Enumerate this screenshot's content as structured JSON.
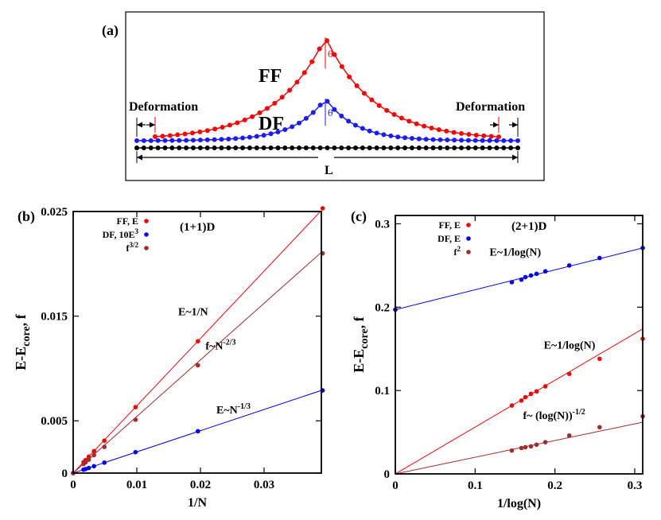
{
  "panels": {
    "a": {
      "tag": "(a)",
      "ff_label": "FF",
      "df_label": "DF",
      "deformation_left": "Deformation",
      "deformation_right": "Deformation",
      "length_label": "L",
      "angle_label": "θ",
      "colors": {
        "ff": "#ff0000",
        "df": "#1a1aff",
        "base": "#000000"
      }
    },
    "b": {
      "tag": "(b)",
      "dimension": "(1+1)D"
    },
    "c": {
      "tag": "(c)",
      "dimension": "(2+1)D"
    }
  },
  "chart_data": [
    {
      "type": "scatter",
      "panel": "b",
      "xlabel": "1/N",
      "ylabel": {
        "main": "E-E",
        "sub": "core",
        "tail": ", f"
      },
      "xlim": [
        0,
        0.039
      ],
      "ylim": [
        0,
        0.025
      ],
      "xticks": [
        {
          "v": 0,
          "t": "0"
        },
        {
          "v": 0.01,
          "t": "0.01"
        },
        {
          "v": 0.02,
          "t": "0.02"
        },
        {
          "v": 0.03,
          "t": "0.03"
        }
      ],
      "yticks": [
        {
          "v": 0,
          "t": "0"
        },
        {
          "v": 0.005,
          "t": "0.005"
        },
        {
          "v": 0.015,
          "t": "0.015"
        },
        {
          "v": 0.025,
          "t": "0.025"
        }
      ],
      "legend": [
        {
          "label": "FF, E",
          "color": "#ff0000"
        },
        {
          "label": "DF, 10E",
          "sup": "3",
          "color": "#0000ff"
        },
        {
          "label": "f",
          "sup": "3/2",
          "color": "#a52a2a"
        }
      ],
      "series": [
        {
          "name": "FF, E",
          "color": "#ff0000",
          "x": [
            0.0392,
            0.0196,
            0.0098,
            0.0049,
            0.00327,
            0.00245,
            0.00196,
            0.00163,
            0.0
          ],
          "y": [
            0.0253,
            0.0126,
            0.0063,
            0.0031,
            0.0021,
            0.00157,
            0.00125,
            0.00105,
            0.0
          ],
          "fit": [
            [
              0,
              0
            ],
            [
              0.039,
              0.0251
            ]
          ]
        },
        {
          "name": "DF, 10E3",
          "color": "#0000ff",
          "x": [
            0.0392,
            0.0196,
            0.0098,
            0.0049,
            0.00327,
            0.00245,
            0.00196,
            0.00163,
            0.0
          ],
          "y": [
            0.0079,
            0.004,
            0.002,
            0.001,
            0.00066,
            0.00049,
            0.00039,
            0.00033,
            0.0
          ],
          "fit": [
            [
              0,
              0
            ],
            [
              0.039,
              0.0079
            ]
          ]
        },
        {
          "name": "f3/2",
          "color": "#a52a2a",
          "x": [
            0.0392,
            0.0196,
            0.0098,
            0.0049,
            0.00327,
            0.00245,
            0.00196,
            0.00163,
            0.0
          ],
          "y": [
            0.021,
            0.0103,
            0.0051,
            0.0025,
            0.00171,
            0.00128,
            0.00103,
            0.00086,
            0.0
          ],
          "fit": [
            [
              0,
              0
            ],
            [
              0.039,
              0.0211
            ]
          ]
        }
      ],
      "annotations": [
        {
          "text": "E~1/N",
          "x": 0.0165,
          "y": 0.0151
        },
        {
          "text": "f~N",
          "sup": "-2/3",
          "x": 0.0208,
          "y": 0.0118
        },
        {
          "text": "E~N",
          "sup": "-1/3",
          "x": 0.0225,
          "y": 0.0057
        }
      ]
    },
    {
      "type": "scatter",
      "panel": "c",
      "xlabel": "1/log(N)",
      "ylabel": {
        "main": "E-E",
        "sub": "core",
        "tail": ", f"
      },
      "xlim": [
        0,
        0.31
      ],
      "ylim": [
        0,
        0.31
      ],
      "xticks": [
        {
          "v": 0,
          "t": "0"
        },
        {
          "v": 0.1,
          "t": "0.1"
        },
        {
          "v": 0.2,
          "t": "0.2"
        },
        {
          "v": 0.3,
          "t": "0.3"
        }
      ],
      "yticks": [
        {
          "v": 0,
          "t": "0"
        },
        {
          "v": 0.1,
          "t": "0.1"
        },
        {
          "v": 0.2,
          "t": "0.2"
        },
        {
          "v": 0.3,
          "t": "0.3"
        }
      ],
      "legend": [
        {
          "label": "FF, E",
          "color": "#ff0000"
        },
        {
          "label": "DF, E",
          "color": "#0000ff"
        },
        {
          "label": "f",
          "sup": "2",
          "color": "#a52a2a"
        }
      ],
      "series": [
        {
          "name": "FF, E",
          "color": "#ff0000",
          "x": [
            0.146,
            0.158,
            0.163,
            0.17,
            0.177,
            0.188,
            0.218,
            0.256,
            0.31
          ],
          "y": [
            0.082,
            0.088,
            0.092,
            0.096,
            0.099,
            0.105,
            0.12,
            0.138,
            0.162
          ],
          "fit": [
            [
              0,
              0
            ],
            [
              0.31,
              0.174
            ]
          ]
        },
        {
          "name": "DF, E",
          "color": "#0000ff",
          "x": [
            0.0,
            0.146,
            0.158,
            0.163,
            0.17,
            0.177,
            0.188,
            0.218,
            0.256,
            0.31
          ],
          "y": [
            0.197,
            0.23,
            0.233,
            0.236,
            0.238,
            0.24,
            0.243,
            0.25,
            0.259,
            0.271
          ],
          "fit": [
            [
              0,
              0.197
            ],
            [
              0.31,
              0.271
            ]
          ]
        },
        {
          "name": "f2",
          "color": "#a52a2a",
          "x": [
            0.146,
            0.158,
            0.163,
            0.17,
            0.177,
            0.188,
            0.218,
            0.256,
            0.31
          ],
          "y": [
            0.028,
            0.031,
            0.032,
            0.033,
            0.035,
            0.038,
            0.046,
            0.056,
            0.069
          ],
          "fit": [
            [
              0,
              0
            ],
            [
              0.31,
              0.062
            ]
          ]
        }
      ],
      "annotations": [
        {
          "text": "E~1/log(N)",
          "x": 0.118,
          "y": 0.262
        },
        {
          "text": "E~1/log(N)",
          "x": 0.186,
          "y": 0.15
        },
        {
          "text": "f~ (log(N))",
          "sup": "-1/2",
          "x": 0.16,
          "y": 0.066
        }
      ]
    }
  ]
}
